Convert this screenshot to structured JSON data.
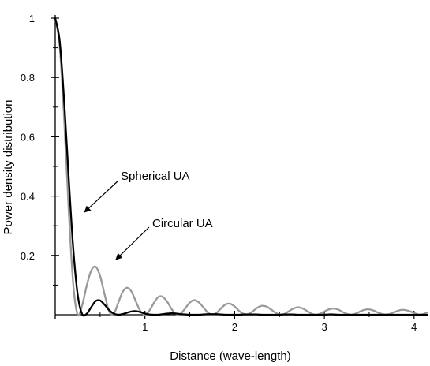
{
  "chart_data": {
    "type": "line",
    "title": "",
    "xlabel": "Distance (wave-length)",
    "ylabel": "Power density distribution",
    "xlim": [
      0,
      4.15
    ],
    "ylim": [
      0,
      1.0
    ],
    "grid": false,
    "legend": "none",
    "x_ticks": [
      "1",
      "2",
      "3",
      "4"
    ],
    "y_ticks": [
      "0.2",
      "0.4",
      "0.6",
      "0.8",
      "1"
    ],
    "series": [
      {
        "name": "Spherical UA",
        "color": "#000000",
        "x": [
          0,
          0.05,
          0.1,
          0.15,
          0.2,
          0.25,
          0.3,
          0.35,
          0.4,
          0.45,
          0.5,
          0.55,
          0.6,
          0.65,
          0.7,
          0.75,
          0.8,
          0.85,
          0.9,
          0.95,
          1.0,
          1.05,
          1.1,
          1.15,
          1.2,
          1.25,
          1.3,
          1.35,
          1.4,
          1.45,
          1.5,
          1.55,
          1.6,
          1.65,
          1.7,
          1.75,
          1.8,
          1.85,
          1.9,
          1.95,
          2.0,
          2.05,
          2.1,
          2.15,
          2.2,
          2.25,
          2.3,
          2.35,
          2.4,
          2.45,
          2.5,
          2.55,
          2.6,
          2.65,
          2.7,
          2.75,
          2.8,
          2.85,
          2.9,
          2.95,
          3.0,
          3.05,
          3.1,
          3.15,
          3.2,
          3.25,
          3.3,
          3.35,
          3.4,
          3.45,
          3.5,
          3.55,
          3.6,
          3.65,
          3.7,
          3.75,
          3.8,
          3.85,
          3.9,
          3.95,
          4.0,
          4.05,
          4.1,
          4.15
        ],
        "values": [
          1,
          0.922,
          0.718,
          0.461,
          0.226,
          0.068,
          0.002,
          0.003,
          0.025,
          0.046,
          0.048,
          0.034,
          0.016,
          0.004,
          0.0,
          0.002,
          0.007,
          0.011,
          0.012,
          0.009,
          0.004,
          0.001,
          0.0,
          0.0,
          0.002,
          0.004,
          0.005,
          0.004,
          0.002,
          0.001,
          0.0,
          0.0,
          0.0,
          0.001,
          0.002,
          0.002,
          0.002,
          0.001,
          0.0,
          0.0,
          0.0,
          0.0,
          0.001,
          0.001,
          0.001,
          0.001,
          0.0,
          0.0,
          0.0,
          0.0,
          0.0,
          0.001,
          0.001,
          0.001,
          0.0,
          0.0,
          0.0,
          0.0,
          0.0,
          0.0,
          0.0,
          0.001,
          0.001,
          0.0,
          0.0,
          0.0,
          0.0,
          0.0,
          0.0,
          0.0,
          0.0,
          0.0,
          0.0,
          0.0,
          0.0,
          0.0,
          0.0,
          0.0,
          0.0,
          0.0,
          0.0,
          0.0,
          0.0,
          0.0
        ]
      },
      {
        "name": "Circular UA",
        "color": "#999999",
        "x": [
          0,
          0.05,
          0.1,
          0.15,
          0.2,
          0.25,
          0.3,
          0.35,
          0.4,
          0.45,
          0.5,
          0.55,
          0.6,
          0.65,
          0.7,
          0.75,
          0.8,
          0.85,
          0.9,
          0.95,
          1.0,
          1.05,
          1.1,
          1.15,
          1.2,
          1.25,
          1.3,
          1.35,
          1.4,
          1.45,
          1.5,
          1.55,
          1.6,
          1.65,
          1.7,
          1.75,
          1.8,
          1.85,
          1.9,
          1.95,
          2.0,
          2.05,
          2.1,
          2.15,
          2.2,
          2.25,
          2.3,
          2.35,
          2.4,
          2.45,
          2.5,
          2.55,
          2.6,
          2.65,
          2.7,
          2.75,
          2.8,
          2.85,
          2.9,
          2.95,
          3.0,
          3.05,
          3.1,
          3.15,
          3.2,
          3.25,
          3.3,
          3.35,
          3.4,
          3.45,
          3.5,
          3.55,
          3.6,
          3.65,
          3.7,
          3.75,
          3.8,
          3.85,
          3.9,
          3.95,
          4.0,
          4.05,
          4.1,
          4.15
        ],
        "values": [
          1,
          0.906,
          0.658,
          0.353,
          0.105,
          0.0,
          0.032,
          0.097,
          0.148,
          0.162,
          0.131,
          0.069,
          0.012,
          0.002,
          0.038,
          0.076,
          0.091,
          0.078,
          0.044,
          0.012,
          0.0,
          0.014,
          0.04,
          0.06,
          0.06,
          0.043,
          0.018,
          0.002,
          0.004,
          0.022,
          0.041,
          0.049,
          0.042,
          0.025,
          0.008,
          0.0,
          0.007,
          0.022,
          0.035,
          0.037,
          0.028,
          0.013,
          0.003,
          0.002,
          0.011,
          0.023,
          0.03,
          0.028,
          0.019,
          0.008,
          0.001,
          0.002,
          0.011,
          0.02,
          0.025,
          0.022,
          0.014,
          0.005,
          0.0,
          0.003,
          0.011,
          0.018,
          0.021,
          0.018,
          0.01,
          0.003,
          0.0,
          0.004,
          0.011,
          0.017,
          0.018,
          0.014,
          0.007,
          0.002,
          0.001,
          0.005,
          0.011,
          0.016,
          0.016,
          0.012,
          0.006,
          0.001,
          0.002,
          0.008
        ]
      }
    ],
    "annotations": [
      {
        "text": "Spherical UA",
        "target_x": 0.3,
        "target_y": 0.33
      },
      {
        "text": "Circular UA",
        "target_x": 0.65,
        "target_y": 0.17
      }
    ]
  }
}
